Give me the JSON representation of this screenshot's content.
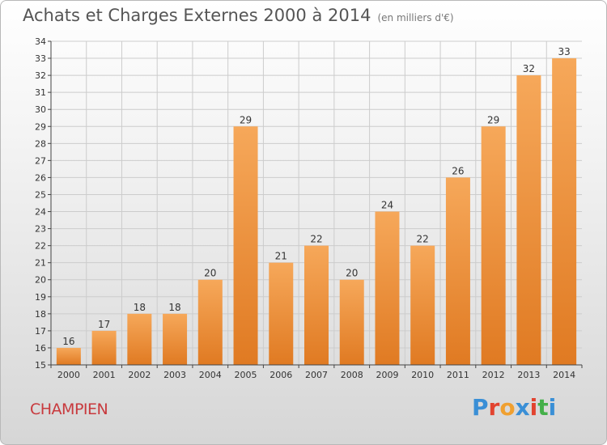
{
  "header": {
    "title": "Achats et Charges Externes 2000 à 2014",
    "subtitle": "(en milliers d'€)"
  },
  "commune": "CHAMPIEN",
  "logo": {
    "text": "Proxiti",
    "letter_colors": [
      "#3a8fd6",
      "#e2432f",
      "#f0a030",
      "#3a8fd6",
      "#e2432f",
      "#45b04a",
      "#3a8fd6"
    ]
  },
  "colors": {
    "bar_top": "#f6a85a",
    "bar_bottom": "#e07a22",
    "grid": "#cccccc",
    "axis": "#444444"
  },
  "chart_data": {
    "type": "bar",
    "categories": [
      "2000",
      "2001",
      "2002",
      "2003",
      "2004",
      "2005",
      "2006",
      "2007",
      "2008",
      "2009",
      "2010",
      "2011",
      "2012",
      "2013",
      "2014"
    ],
    "values": [
      16,
      17,
      18,
      18,
      20,
      29,
      21,
      22,
      20,
      24,
      22,
      26,
      29,
      32,
      33
    ],
    "data_labels": [
      "16",
      "17",
      "18",
      "18",
      "20",
      "29",
      "21",
      "22",
      "20",
      "24",
      "22",
      "26",
      "29",
      "32",
      "33"
    ],
    "ylim": [
      15,
      34
    ],
    "ytick_step": 1,
    "grid": true,
    "xlabel": "",
    "ylabel": ""
  }
}
